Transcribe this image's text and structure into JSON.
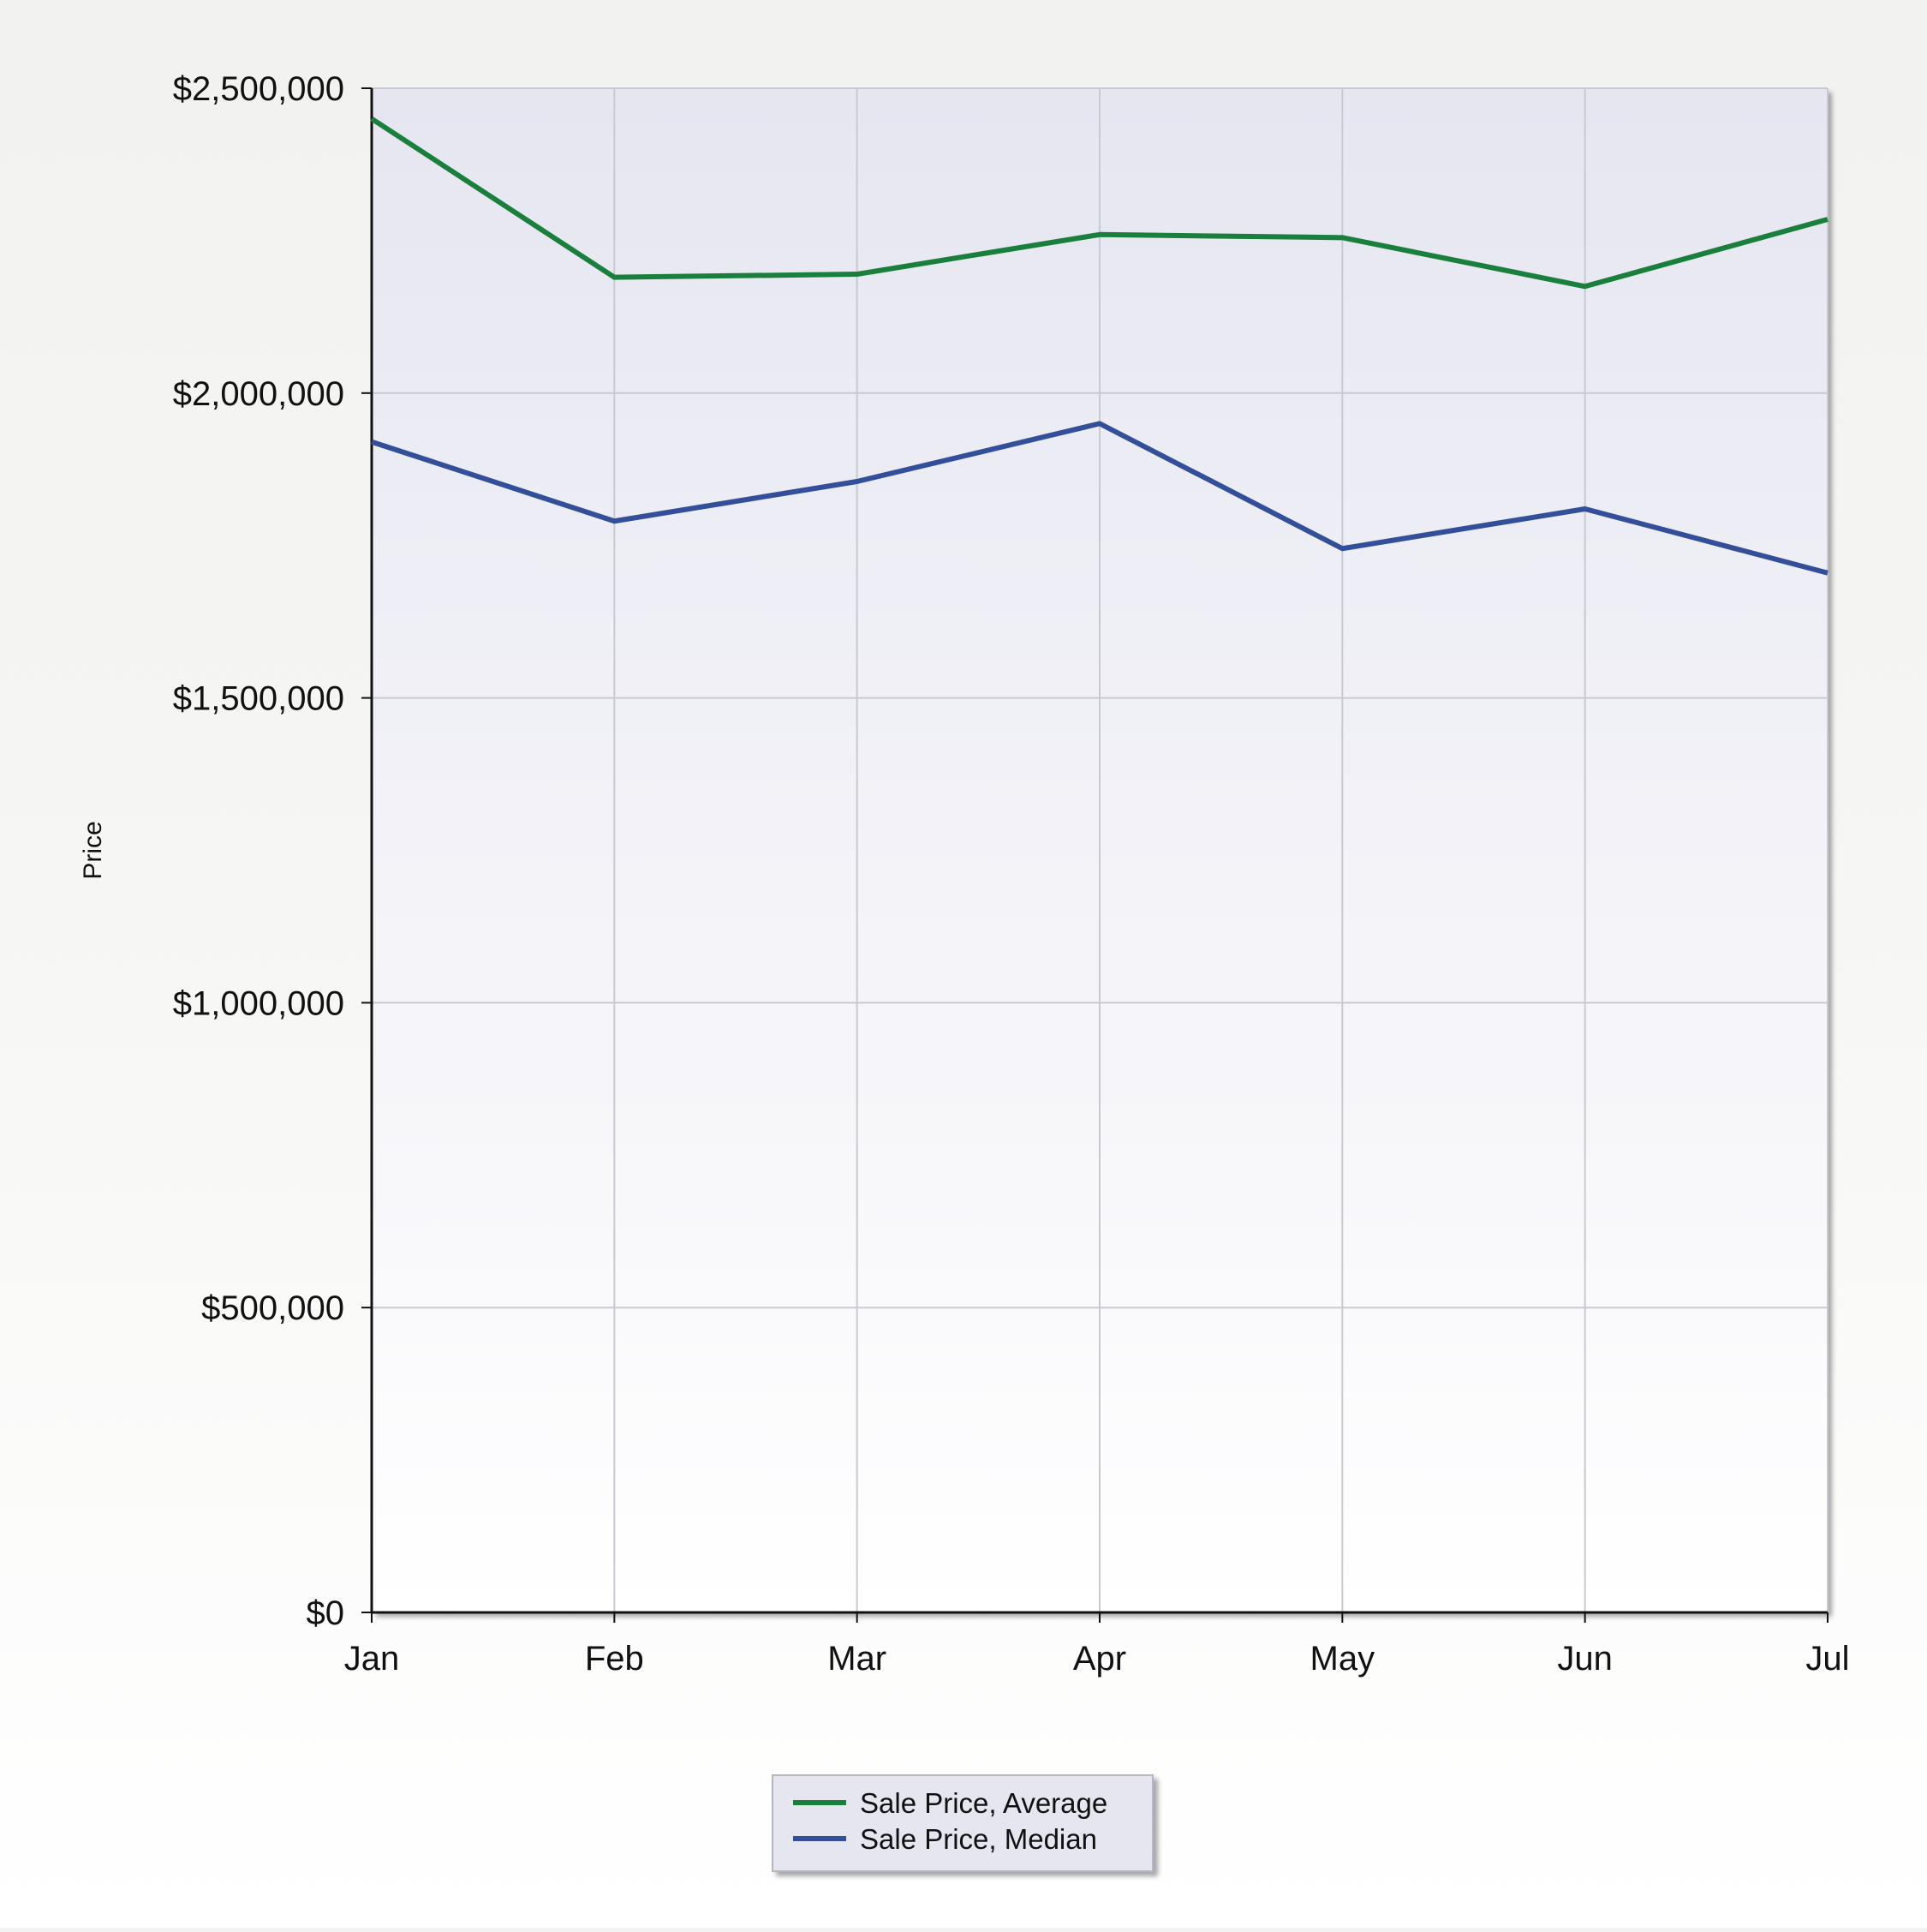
{
  "chart_data": {
    "type": "line",
    "ylabel": "Price",
    "xlabel": "",
    "categories": [
      "Jan",
      "Feb",
      "Mar",
      "Apr",
      "May",
      "Jun",
      "Jul"
    ],
    "ylim": [
      0,
      2500000
    ],
    "yticks": [
      {
        "value": 0,
        "label": "$0"
      },
      {
        "value": 500000,
        "label": "$500,000"
      },
      {
        "value": 1000000,
        "label": "$1,000,000"
      },
      {
        "value": 1500000,
        "label": "$1,500,000"
      },
      {
        "value": 2000000,
        "label": "$2,000,000"
      },
      {
        "value": 2500000,
        "label": "$2,500,000"
      }
    ],
    "grid": true,
    "legend_position": "bottom-center",
    "series": [
      {
        "name": "Sale Price, Average",
        "color": "#1a7f3c",
        "values": [
          2450000,
          2190000,
          2195000,
          2260000,
          2255000,
          2175000,
          2285000
        ]
      },
      {
        "name": "Sale Price, Median",
        "color": "#344f9a",
        "values": [
          1920000,
          1790000,
          1855000,
          1950000,
          1745000,
          1810000,
          1705000
        ]
      }
    ]
  }
}
